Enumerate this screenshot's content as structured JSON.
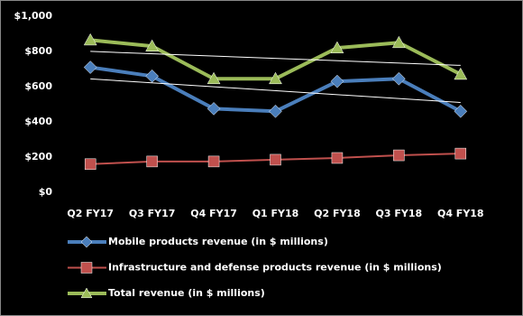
{
  "chart_data": {
    "type": "line",
    "categories": [
      "Q2 FY17",
      "Q3 FY17",
      "Q4 FY17",
      "Q1 FY18",
      "Q2 FY18",
      "Q3 FY18",
      "Q4 FY18"
    ],
    "series": [
      {
        "name": "Mobile products revenue (in $ millions)",
        "color": "#4a7ebb",
        "marker": "diamond",
        "trendline": true,
        "values": [
          710,
          660,
          475,
          460,
          630,
          645,
          460
        ]
      },
      {
        "name": "Infrastructure and  defense products revenue (in $ millions)",
        "color": "#c0504d",
        "marker": "square",
        "trendline": false,
        "values": [
          160,
          175,
          175,
          185,
          195,
          210,
          220
        ]
      },
      {
        "name": "Total revenue (in $ millions)",
        "color": "#9bbb59",
        "marker": "triangle",
        "trendline": true,
        "values": [
          865,
          830,
          645,
          645,
          820,
          850,
          670
        ]
      }
    ],
    "ylim": [
      0,
      1000
    ],
    "yticks": [
      {
        "value": 0,
        "label": "$0"
      },
      {
        "value": 200,
        "label": "$200"
      },
      {
        "value": 400,
        "label": "$400"
      },
      {
        "value": 600,
        "label": "$600"
      },
      {
        "value": 800,
        "label": "$800"
      },
      {
        "value": 1000,
        "label": "$1,000"
      }
    ],
    "grid": false
  }
}
